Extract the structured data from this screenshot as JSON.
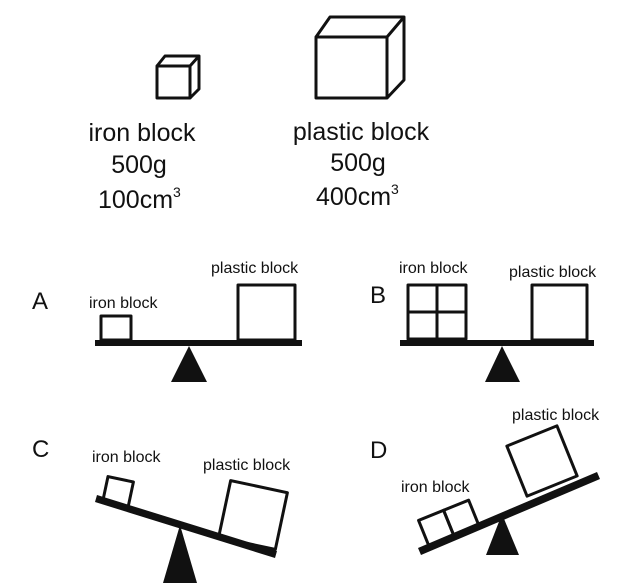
{
  "blocks": {
    "iron": {
      "name": "iron block",
      "mass": "500g",
      "volume_num": "100cm",
      "volume_sup": "3"
    },
    "plastic": {
      "name": "plastic block",
      "mass": "500g",
      "volume_num": "400cm",
      "volume_sup": "3"
    }
  },
  "options": {
    "a": {
      "letter": "A",
      "iron_label": "iron block",
      "plastic_label": "plastic block"
    },
    "b": {
      "letter": "B",
      "iron_label": "iron block",
      "plastic_label": "plastic block"
    },
    "c": {
      "letter": "C",
      "iron_label": "iron block",
      "plastic_label": "plastic block"
    },
    "d": {
      "letter": "D",
      "iron_label": "iron block",
      "plastic_label": "plastic block"
    }
  }
}
